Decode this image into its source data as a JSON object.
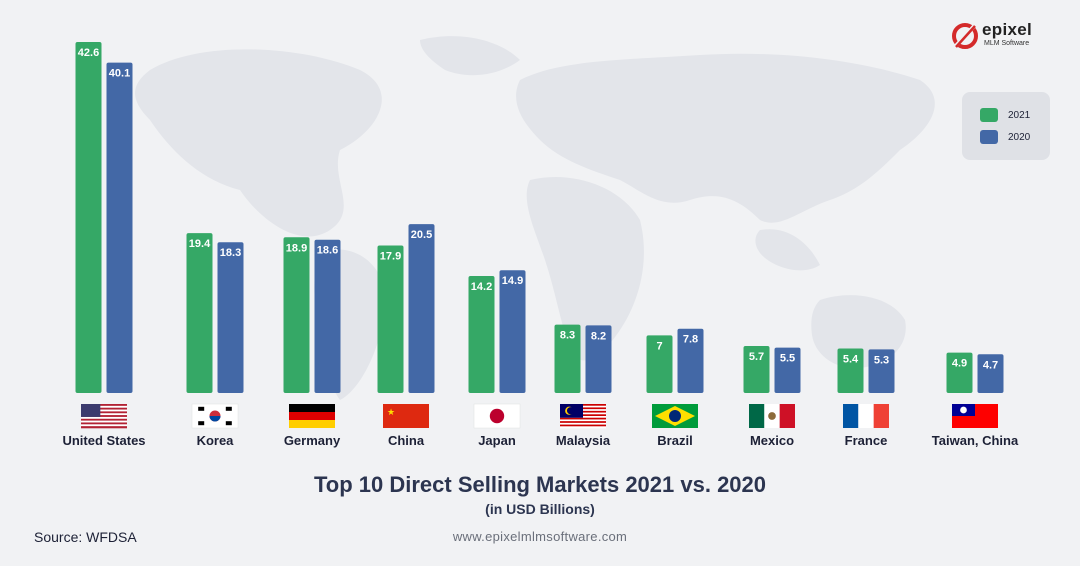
{
  "brand": {
    "name": "epixel",
    "tagline": "MLM Software",
    "color": "#d42a2a"
  },
  "colors": {
    "series_2021": "#35a866",
    "series_2020": "#4368a6",
    "title": "#2c3550"
  },
  "legend": [
    {
      "label": "2021",
      "color": "#35a866"
    },
    {
      "label": "2020",
      "color": "#4368a6"
    }
  ],
  "footer": {
    "source": "Source: WFDSA",
    "website": "www.epixelmlmsoftware.com"
  },
  "chart_data": {
    "type": "bar",
    "title": "Top 10 Direct Selling Markets 2021 vs. 2020",
    "subtitle": "(in USD Billions)",
    "categories": [
      "United States",
      "Korea",
      "Germany",
      "China",
      "Japan",
      "Malaysia",
      "Brazil",
      "Mexico",
      "France",
      "Taiwan, China"
    ],
    "flags": [
      "us-flag",
      "kr-flag",
      "de-flag",
      "cn-flag",
      "jp-flag",
      "my-flag",
      "br-flag",
      "mx-flag",
      "fr-flag",
      "tw-flag"
    ],
    "series": [
      {
        "name": "2021",
        "values": [
          42.6,
          19.4,
          18.9,
          17.9,
          14.2,
          8.3,
          7,
          5.7,
          5.4,
          4.9
        ]
      },
      {
        "name": "2020",
        "values": [
          40.1,
          18.3,
          18.6,
          20.5,
          14.9,
          8.2,
          7.8,
          5.5,
          5.3,
          4.7
        ]
      }
    ],
    "value_labels": [
      [
        "42.6",
        "19.4",
        "18.9",
        "17.9",
        "14.2",
        "8.3",
        "7",
        "5.7",
        "5.4",
        "4.9"
      ],
      [
        "40.1",
        "18.3",
        "18.6",
        "20.5",
        "14.9",
        "8.2",
        "7.8",
        "5.5",
        "5.3",
        "4.7"
      ]
    ],
    "ylim": [
      0,
      42.6
    ],
    "legend_position": "top-right",
    "grid": false
  }
}
